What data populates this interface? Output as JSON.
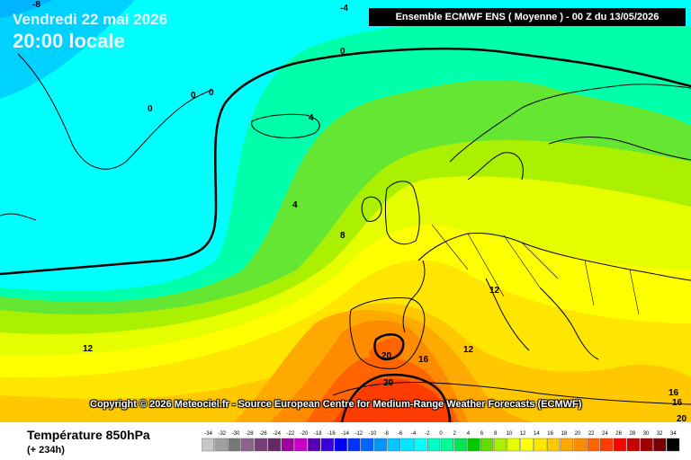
{
  "map": {
    "date": "Vendredi 22 mai 2026",
    "time": "20:00 locale",
    "model_info": "Ensemble ECMWF ENS  ( Moyenne )  -  00 Z du 13/05/2026",
    "copyright": "Copyright © 2026 Meteociel.fr - Source European Centre for Medium-Range Weather Forecasts (ECMWF)",
    "parameter": "Température 850hPa",
    "lead_time": "(+ 234h)",
    "isotherm_labels": [
      "-8",
      "-4",
      "0",
      "0",
      "0",
      "0",
      "4",
      "4",
      "8",
      "12",
      "12",
      "12",
      "16",
      "16",
      "16",
      "20",
      "20",
      "20"
    ]
  },
  "legend": {
    "values": [
      "-34",
      "-32",
      "-30",
      "-28",
      "-26",
      "-24",
      "-22",
      "-20",
      "-18",
      "-16",
      "-14",
      "-12",
      "-10",
      "-8",
      "-6",
      "-4",
      "-2",
      "0",
      "2",
      "4",
      "6",
      "8",
      "10",
      "12",
      "14",
      "16",
      "18",
      "20",
      "22",
      "24",
      "26",
      "28",
      "30",
      "32",
      "34"
    ],
    "colors": [
      "#c8c8c8",
      "#a0a0a0",
      "#787878",
      "#8c648c",
      "#783c78",
      "#642864",
      "#a000a0",
      "#c800c8",
      "#5a00b4",
      "#3c00dc",
      "#0000ff",
      "#0032ff",
      "#0064ff",
      "#0096ff",
      "#00c8ff",
      "#00e6ff",
      "#00ffff",
      "#00ffc8",
      "#00ff96",
      "#00e650",
      "#00c800",
      "#64dc00",
      "#aaf000",
      "#e6ff00",
      "#ffff00",
      "#ffe600",
      "#ffc800",
      "#ffaa00",
      "#ff8c00",
      "#ff6400",
      "#ff3c00",
      "#ff0000",
      "#c80000",
      "#a00000",
      "#780000",
      "#000000"
    ]
  }
}
